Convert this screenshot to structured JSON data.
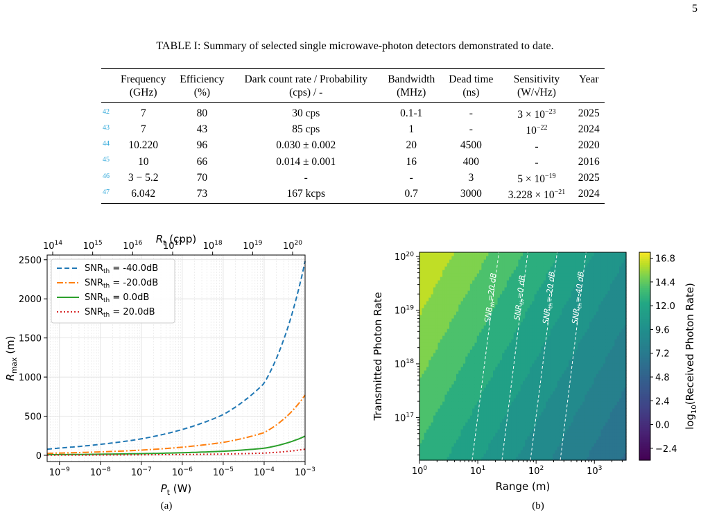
{
  "page_number": "5",
  "table": {
    "caption": "TABLE I: Summary of selected single microwave-photon detectors demonstrated to date.",
    "headers": [
      {
        "line1": "Frequency",
        "line2": "(GHz)"
      },
      {
        "line1": "Efficiency",
        "line2": "(%)"
      },
      {
        "line1": "Dark count rate / Probability",
        "line2": "(cps) / -"
      },
      {
        "line1": "Bandwidth",
        "line2": "(MHz)"
      },
      {
        "line1": "Dead time",
        "line2": "(ns)"
      },
      {
        "line1": "Sensitivity",
        "line2": "(W/√Hz)"
      },
      {
        "line1": "Year",
        "line2": ""
      }
    ],
    "rows": [
      {
        "ref": "42",
        "freq": "7",
        "eff": "80",
        "dark": "30 cps",
        "bw": "0.1-1",
        "dead": "-",
        "sens_base": "3 × 10",
        "sens_exp": "−23",
        "year": "2025"
      },
      {
        "ref": "43",
        "freq": "7",
        "eff": "43",
        "dark": "85 cps",
        "bw": "1",
        "dead": "-",
        "sens_base": "10",
        "sens_exp": "−22",
        "year": "2024"
      },
      {
        "ref": "44",
        "freq": "10.220",
        "eff": "96",
        "dark": "0.030 ± 0.002",
        "bw": "20",
        "dead": "4500",
        "sens_base": "-",
        "sens_exp": "",
        "year": "2020"
      },
      {
        "ref": "45",
        "freq": "10",
        "eff": "66",
        "dark": "0.014 ± 0.001",
        "bw": "16",
        "dead": "400",
        "sens_base": "-",
        "sens_exp": "",
        "year": "2016"
      },
      {
        "ref": "46",
        "freq": "3 − 5.2",
        "eff": "70",
        "dark": "-",
        "bw": "-",
        "dead": "3",
        "sens_base": "5 × 10",
        "sens_exp": "−19",
        "year": "2025"
      },
      {
        "ref": "47",
        "freq": "6.042",
        "eff": "73",
        "dark": "167 kcps",
        "bw": "0.7",
        "dead": "3000",
        "sens_base": "3.228 × 10",
        "sens_exp": "−21",
        "year": "2024"
      }
    ]
  },
  "chart_data": [
    {
      "type": "line",
      "subcaption": "(a)",
      "xlabel": "P_t (W)",
      "x2label": "R_t (cpp)",
      "ylabel": "R_max (m)",
      "xscale": "log",
      "xlim": [
        5e-10,
        0.001
      ],
      "ylim": [
        -80,
        2560
      ],
      "x_ticks": [
        "10^-9",
        "10^-8",
        "10^-7",
        "10^-6",
        "10^-5",
        "10^-4",
        "10^-3"
      ],
      "x2_ticks": [
        "10^14",
        "10^15",
        "10^16",
        "10^17",
        "10^18",
        "10^19",
        "10^20"
      ],
      "y_ticks": [
        0,
        500,
        1000,
        1500,
        2000,
        2500
      ],
      "grid": true,
      "legend_position": "top-left",
      "series": [
        {
          "name": "SNR_th = -40.0dB",
          "color": "#1f77b4",
          "style": "dashed",
          "x": [
            5e-10,
            1e-09,
            1e-08,
            1e-07,
            1e-06,
            1e-05,
            0.0001,
            0.001
          ],
          "y": [
            78,
            93,
            140,
            210,
            330,
            520,
            920,
            2480
          ]
        },
        {
          "name": "SNR_th = -20.0dB",
          "color": "#ff7f0e",
          "style": "dashdot",
          "x": [
            5e-10,
            1e-09,
            1e-08,
            1e-07,
            1e-06,
            1e-05,
            0.0001,
            0.001
          ],
          "y": [
            24,
            29,
            44,
            66,
            104,
            165,
            290,
            770
          ]
        },
        {
          "name": "SNR_th = 0.0dB",
          "color": "#2ca02c",
          "style": "solid",
          "x": [
            5e-10,
            1e-09,
            1e-08,
            1e-07,
            1e-06,
            1e-05,
            0.0001,
            0.001
          ],
          "y": [
            8,
            9,
            14,
            21,
            33,
            52,
            90,
            245
          ]
        },
        {
          "name": "SNR_th = 20.0dB",
          "color": "#d62728",
          "style": "dotted",
          "x": [
            5e-10,
            1e-09,
            1e-08,
            1e-07,
            1e-06,
            1e-05,
            0.0001,
            0.001
          ],
          "y": [
            2,
            3,
            4,
            7,
            10,
            16,
            28,
            78
          ]
        }
      ]
    },
    {
      "type": "heatmap",
      "subcaption": "(b)",
      "xlabel": "Range (m)",
      "ylabel": "Transmitted Photon Rate",
      "colorbar_label": "log10(Received Photon Rate)",
      "xscale": "log",
      "yscale": "log",
      "xlim": [
        1,
        3500.0
      ],
      "ylim": [
        1.6e+16,
        1.2e+20
      ],
      "x_ticks": [
        "10^0",
        "10^1",
        "10^2",
        "10^3"
      ],
      "y_ticks": [
        "10^17",
        "10^18",
        "10^19",
        "10^20"
      ],
      "colorbar_ticks": [
        16.8,
        14.4,
        12.0,
        9.6,
        7.2,
        4.8,
        2.4,
        0.0,
        -2.4
      ],
      "colorbar_range": [
        -3.6,
        17.4
      ],
      "contours": [
        {
          "label": "SNR_th=20 dB",
          "range_at_top": 23,
          "range_at_bottom": 8
        },
        {
          "label": "SNR_th=0 dB",
          "range_at_top": 72,
          "range_at_bottom": 26
        },
        {
          "label": "SNR_th=-20 dB",
          "range_at_top": 230,
          "range_at_bottom": 80
        },
        {
          "label": "SNR_th=-40 dB",
          "range_at_top": 720,
          "range_at_bottom": 260
        }
      ]
    }
  ]
}
